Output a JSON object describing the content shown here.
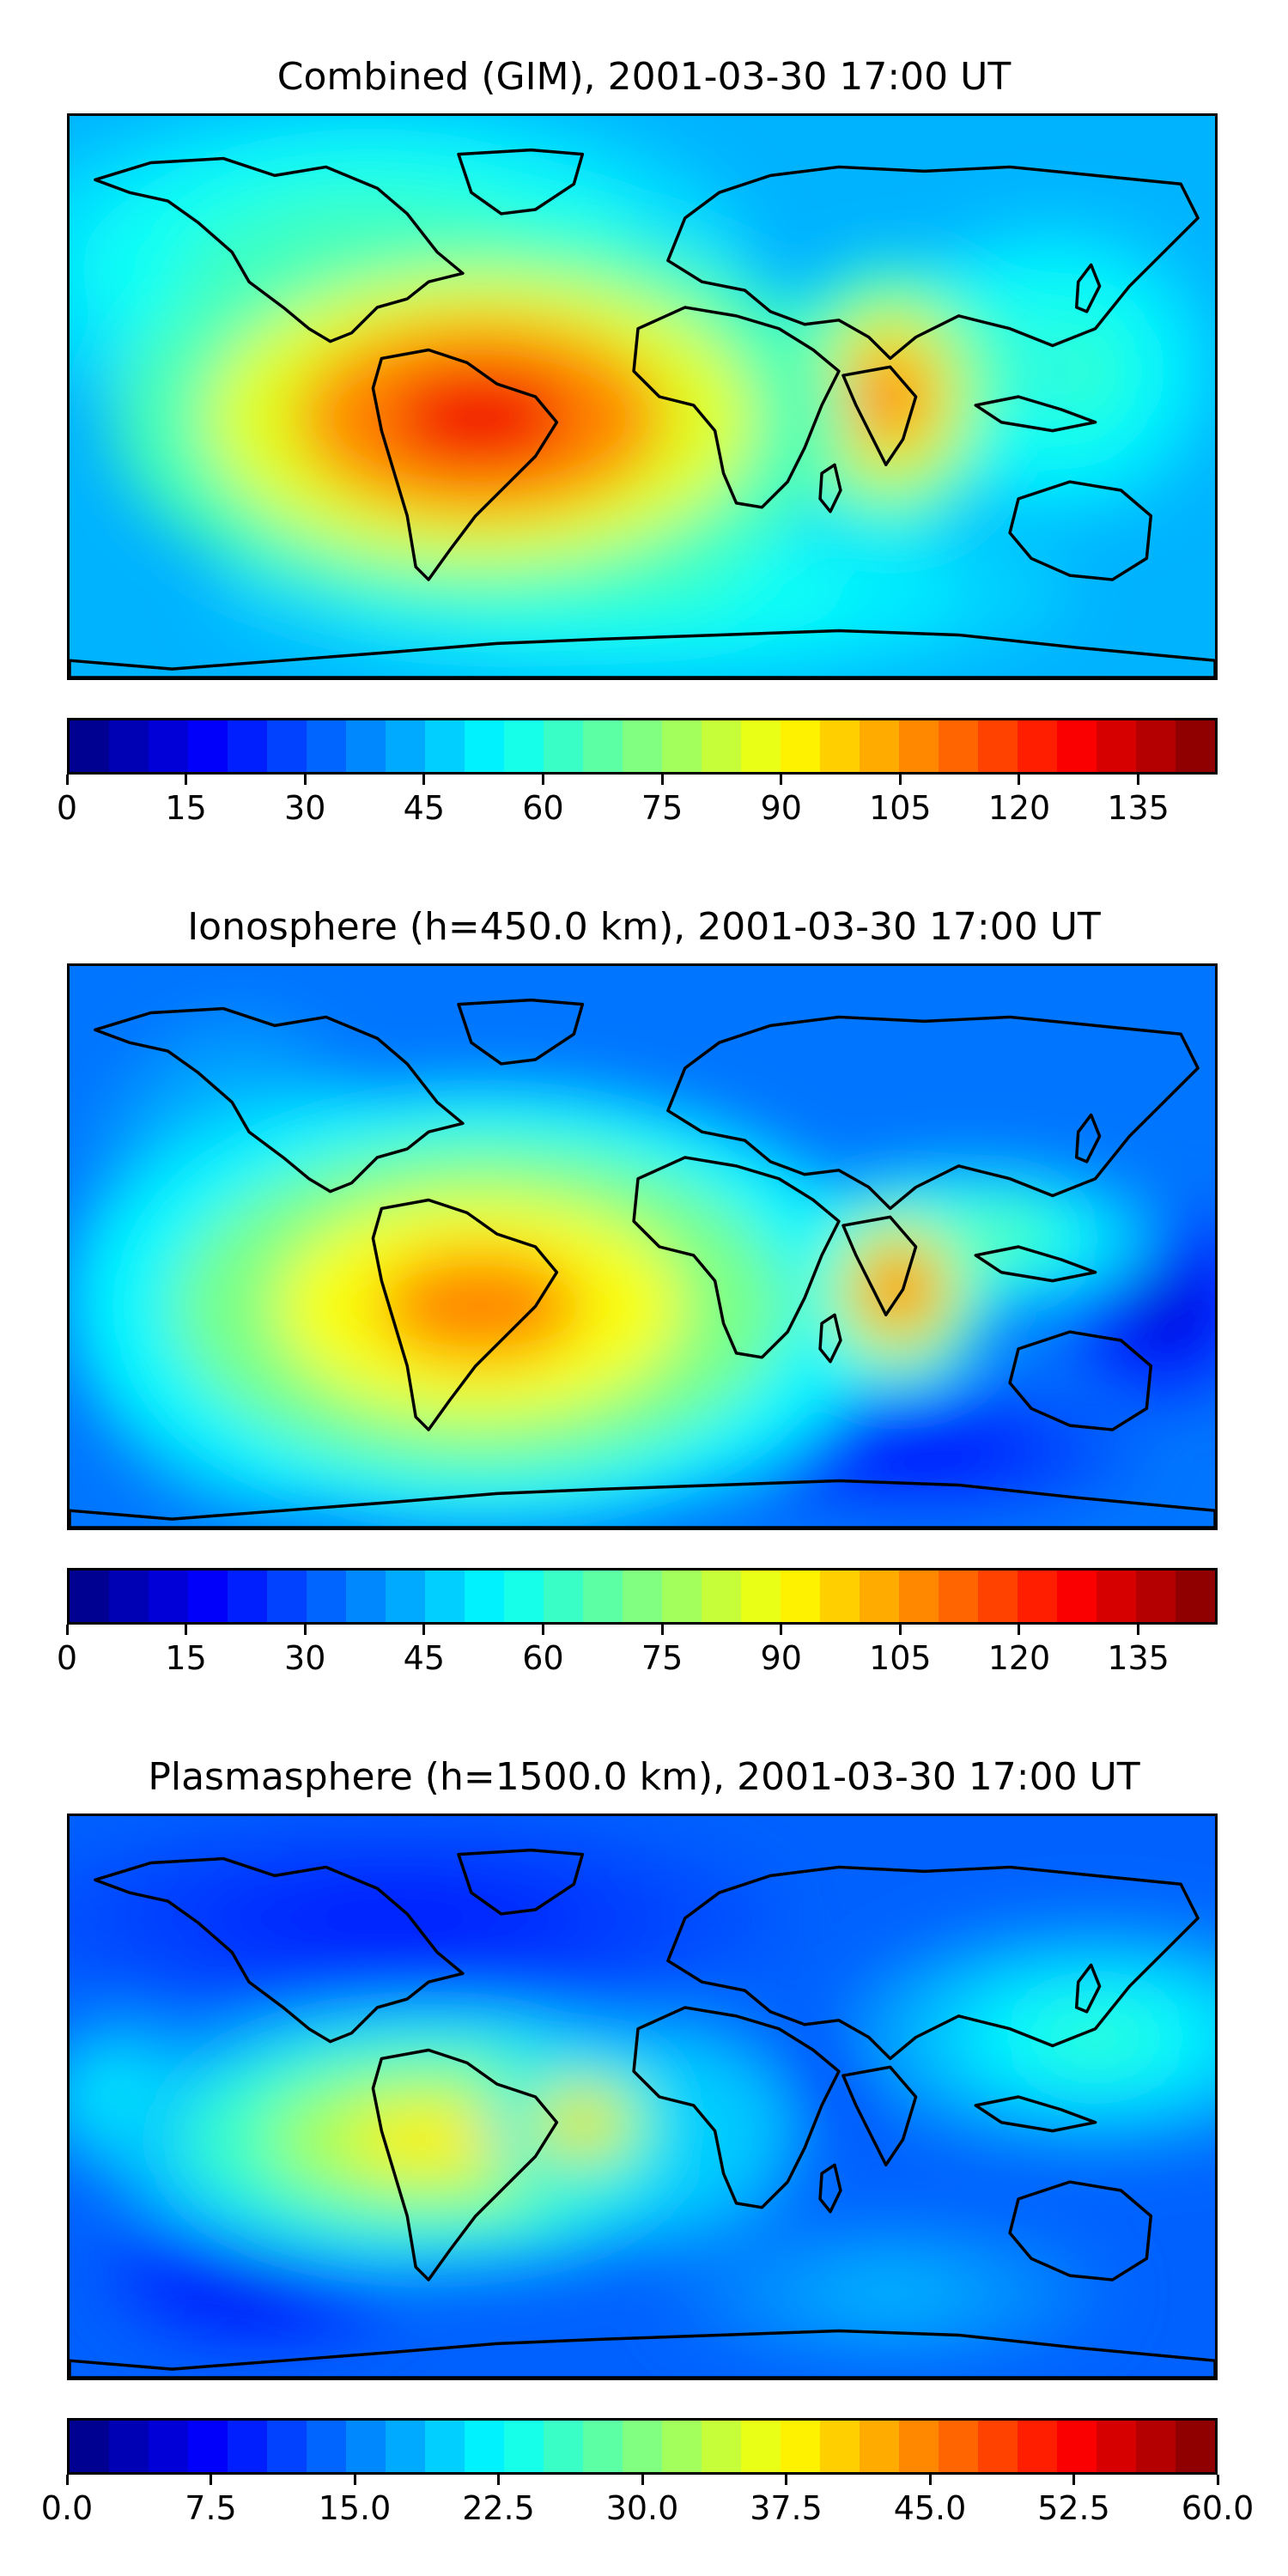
{
  "panels": [
    {
      "title": "Combined (GIM), 2001-03-30 17:00 UT",
      "colorbar": {
        "min": 0,
        "max": 145,
        "levels": 29,
        "ticks": [
          "0",
          "15",
          "30",
          "45",
          "60",
          "75",
          "90",
          "105",
          "120",
          "135"
        ],
        "tick_values": [
          0,
          15,
          30,
          45,
          60,
          75,
          90,
          105,
          120,
          135
        ]
      }
    },
    {
      "title": "Ionosphere  (h=450.0 km), 2001-03-30 17:00 UT",
      "colorbar": {
        "min": 0,
        "max": 145,
        "levels": 29,
        "ticks": [
          "0",
          "15",
          "30",
          "45",
          "60",
          "75",
          "90",
          "105",
          "120",
          "135"
        ],
        "tick_values": [
          0,
          15,
          30,
          45,
          60,
          75,
          90,
          105,
          120,
          135
        ]
      }
    },
    {
      "title": "Plasmasphere (h=1500.0 km), 2001-03-30 17:00 UT",
      "colorbar": {
        "min": 0,
        "max": 60,
        "levels": 29,
        "ticks": [
          "0.0",
          "7.5",
          "15.0",
          "22.5",
          "30.0",
          "37.5",
          "45.0",
          "52.5",
          "60.0"
        ],
        "tick_values": [
          0,
          7.5,
          15,
          22.5,
          30,
          37.5,
          45,
          52.5,
          60
        ]
      }
    }
  ],
  "colormap": "jet",
  "colors": {
    "coastline": "#000000",
    "background_low": "#0a2cff"
  }
}
